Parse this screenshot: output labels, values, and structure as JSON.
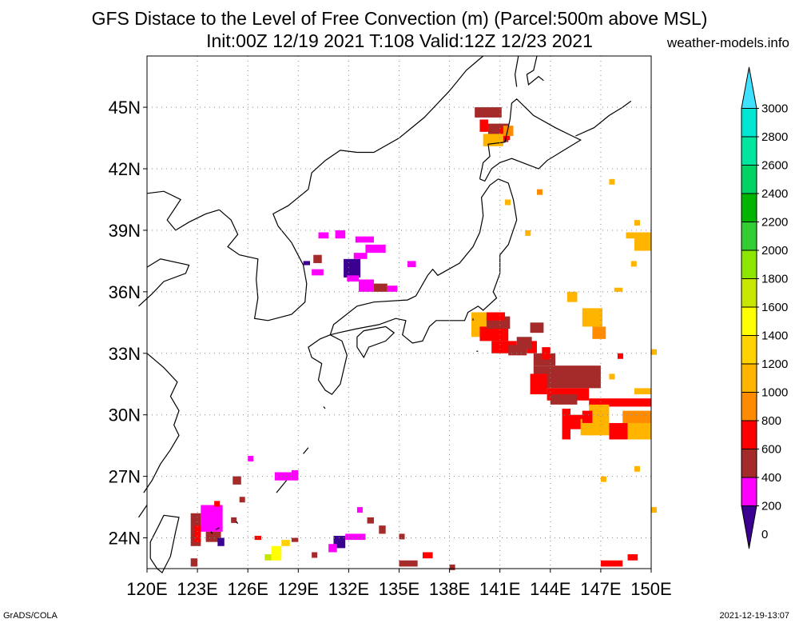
{
  "title": {
    "line1": "GFS Distace to the Level of Free Convection (m) (Parcel:500m above MSL)",
    "line2": "Init:00Z 12/19 2021 T:108 Valid:12Z 12/23 2021",
    "site": "weather-models.info"
  },
  "axes": {
    "lat_labels": [
      "45N",
      "42N",
      "39N",
      "36N",
      "33N",
      "30N",
      "27N",
      "24N"
    ],
    "lat_values": [
      45,
      42,
      39,
      36,
      33,
      30,
      27,
      24
    ],
    "lon_labels": [
      "120E",
      "123E",
      "126E",
      "129E",
      "132E",
      "135E",
      "138E",
      "141E",
      "144E",
      "147E",
      "150E"
    ],
    "lon_values": [
      120,
      123,
      126,
      129,
      132,
      135,
      138,
      141,
      144,
      147,
      150
    ],
    "lon_range": [
      120,
      150
    ],
    "lat_range": [
      22.5,
      47.5
    ],
    "grid": "dotted"
  },
  "colorbar": {
    "labels": [
      "0",
      "200",
      "400",
      "600",
      "800",
      "1000",
      "1200",
      "1400",
      "1600",
      "1800",
      "2000",
      "2200",
      "2400",
      "2600",
      "2800",
      "3000"
    ],
    "colors": [
      "#3c0090",
      "#ff00ff",
      "#a52a2a",
      "#ff0000",
      "#ff8c00",
      "#ffb400",
      "#ffd200",
      "#ffff00",
      "#c8e600",
      "#8ce600",
      "#32cd32",
      "#00b400",
      "#00d264",
      "#00e6a0",
      "#00e6d2",
      "#40e0ff"
    ]
  },
  "footer": {
    "left": "GrADS/COLA",
    "right": "2021-12-19-13:07"
  },
  "colors": {
    "c0": "#3c0090",
    "c200": "#ff00ff",
    "c400": "#a52a2a",
    "c600": "#ff0000",
    "c800": "#ff8c00",
    "c1000": "#ffb400",
    "c1200": "#ffd200",
    "c1400": "#ffff00",
    "c1600": "#c8e600"
  }
}
